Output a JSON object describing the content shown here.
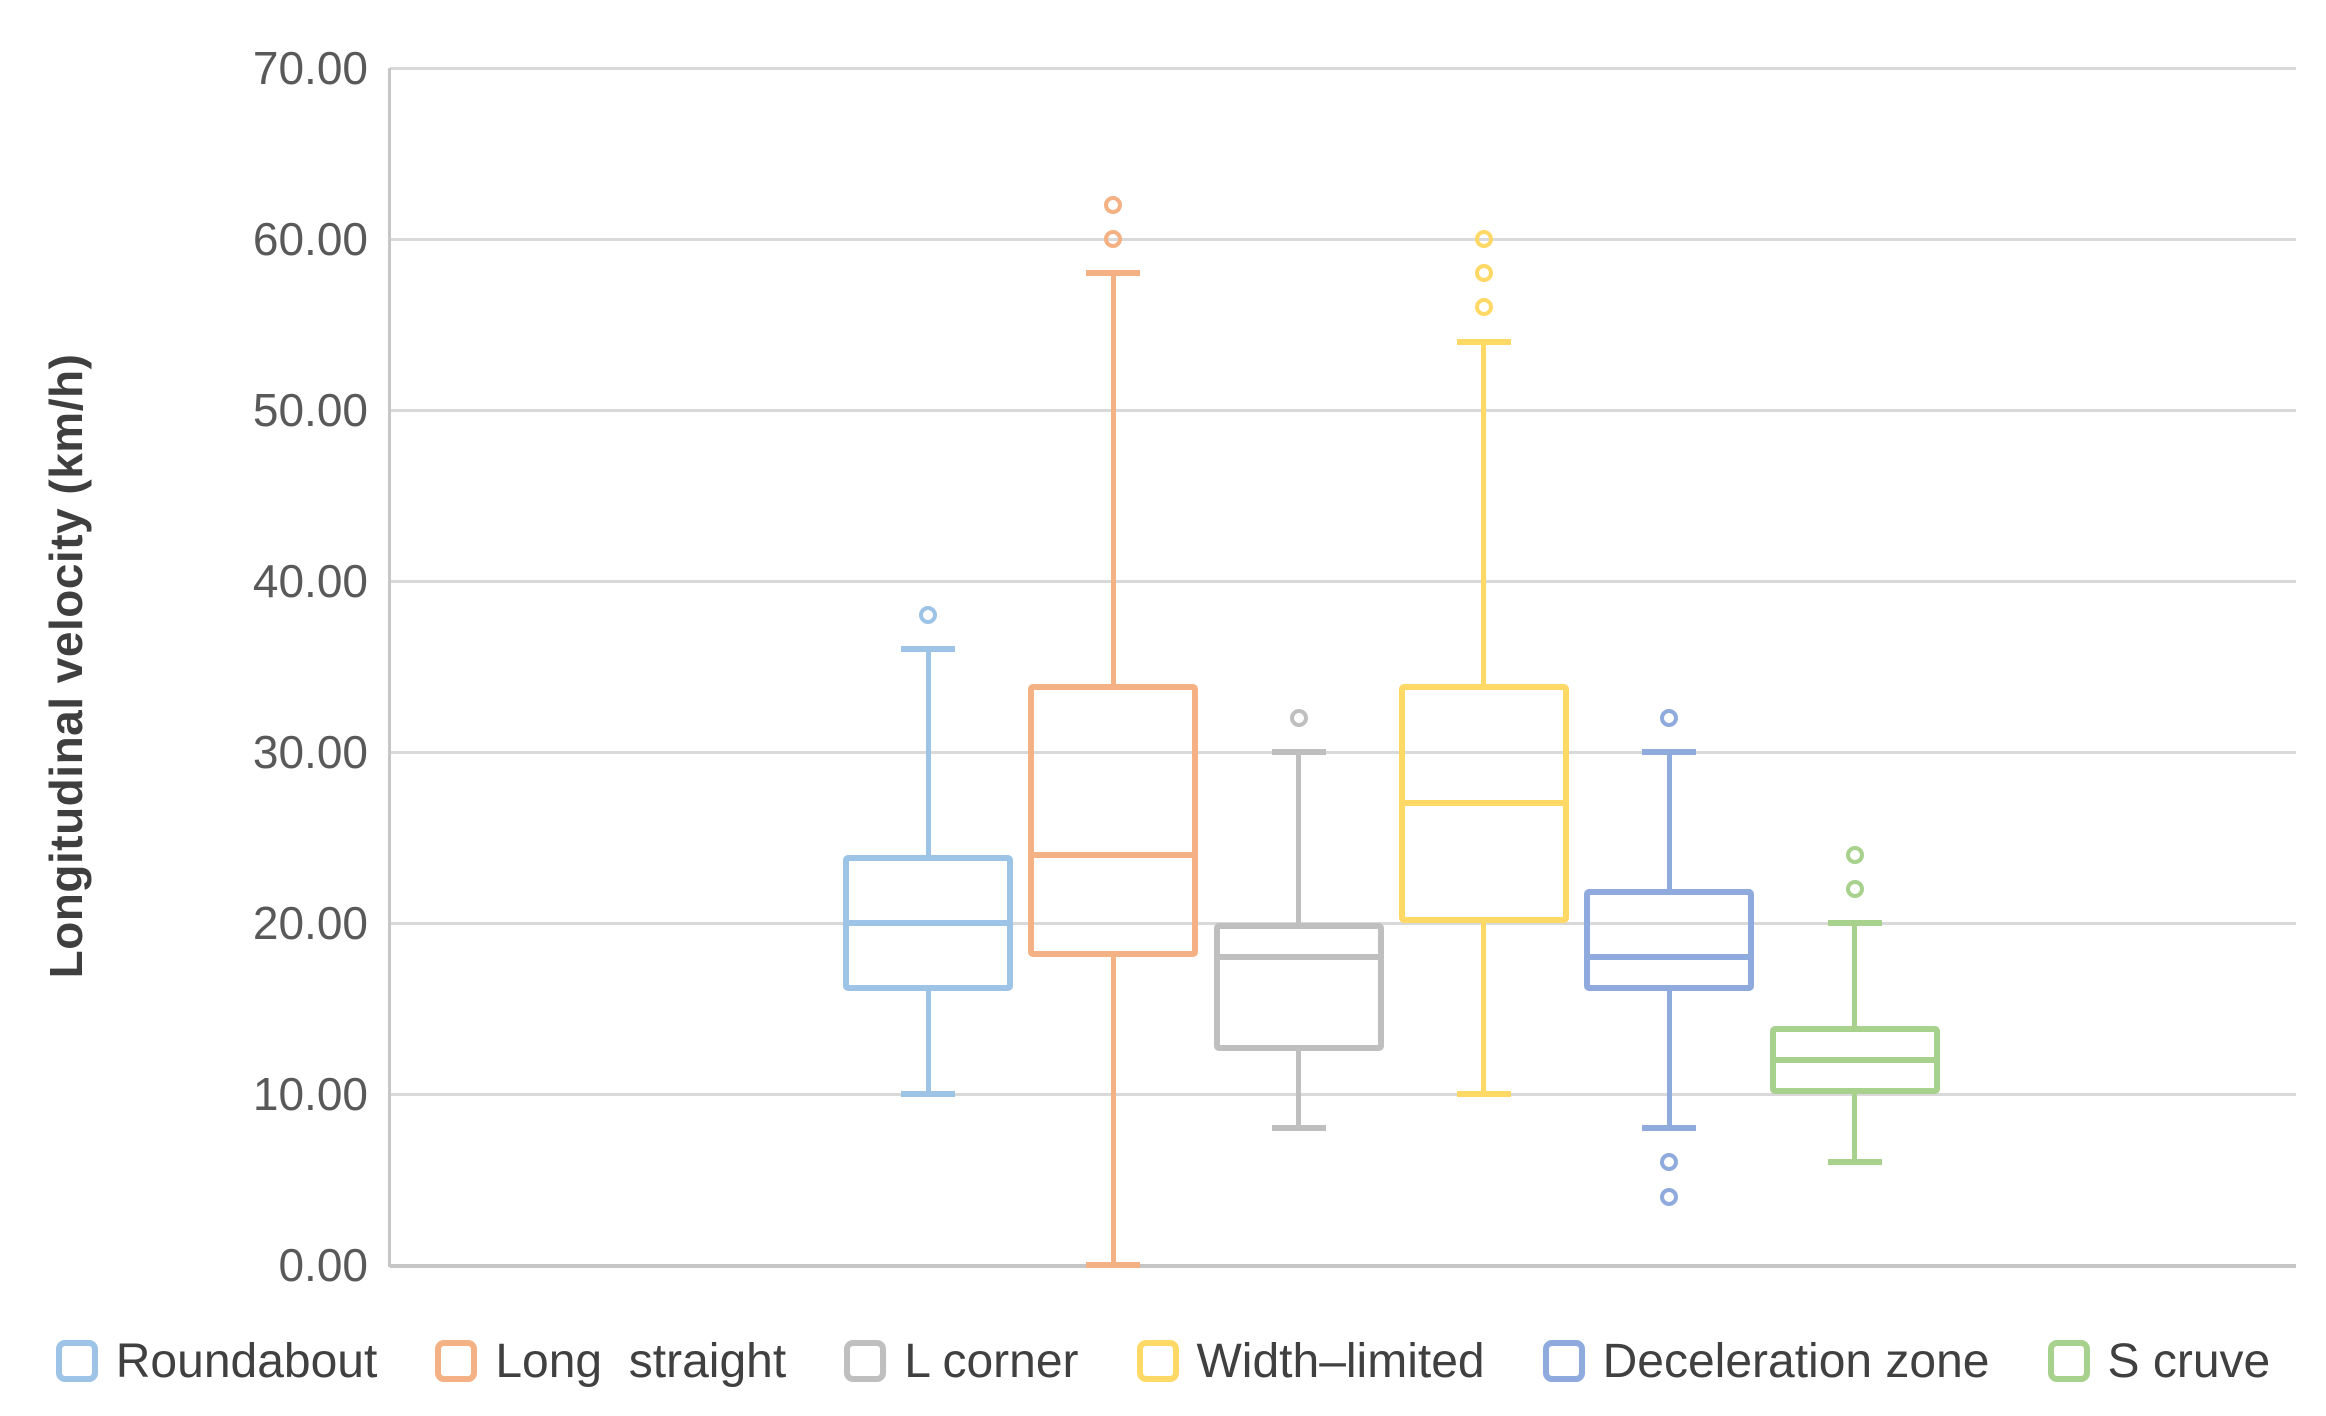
{
  "figure": {
    "background": "#FFFFFF",
    "grid_color": "#D9D9D9",
    "axis_color": "#C6C6C6",
    "tick_text_color": "#595959",
    "title_text_color": "#3F3F3F",
    "legend_text_color": "#404040"
  },
  "y_axis": {
    "title": "Longitudinal velocity (km/h)",
    "tick_labels": [
      "70.00",
      "60.00",
      "50.00",
      "40.00",
      "30.00",
      "20.00",
      "10.00",
      "0.00"
    ]
  },
  "chart_data": {
    "type": "box",
    "title": "",
    "xlabel": "",
    "ylabel": "Longitudinal velocity (km/h)",
    "ylim": [
      0,
      70
    ],
    "ytick_step": 10,
    "ytick_labels": [
      "0.00",
      "10.00",
      "20.00",
      "30.00",
      "40.00",
      "50.00",
      "60.00",
      "70.00"
    ],
    "grid": "horizontal",
    "legend_position": "bottom",
    "series": [
      {
        "name": "Roundabout",
        "color": "#9DC3E6",
        "min": 10,
        "q1": 16,
        "median": 20,
        "q3": 24,
        "max": 36,
        "outliers": [
          38
        ]
      },
      {
        "name": "Long  straight",
        "color": "#F4B183",
        "min": 0,
        "q1": 18,
        "median": 24,
        "q3": 34,
        "max": 58,
        "outliers": [
          60,
          62
        ]
      },
      {
        "name": "L corner",
        "color": "#BFBFBF",
        "min": 8,
        "q1": 12.5,
        "median": 18,
        "q3": 20,
        "max": 30,
        "outliers": [
          32
        ]
      },
      {
        "name": "Width–limited",
        "color": "#FFD966",
        "min": 10,
        "q1": 20,
        "median": 27,
        "q3": 34,
        "max": 54,
        "outliers": [
          56,
          58,
          60
        ]
      },
      {
        "name": "Deceleration zone",
        "color": "#8FAADC",
        "min": 8,
        "q1": 16,
        "median": 18,
        "q3": 22,
        "max": 30,
        "outliers": [
          4,
          6,
          32
        ]
      },
      {
        "name": "S cruve",
        "color": "#A9D18E",
        "min": 6,
        "q1": 10,
        "median": 12,
        "q3": 14,
        "max": 20,
        "outliers": [
          22,
          24
        ]
      }
    ]
  }
}
